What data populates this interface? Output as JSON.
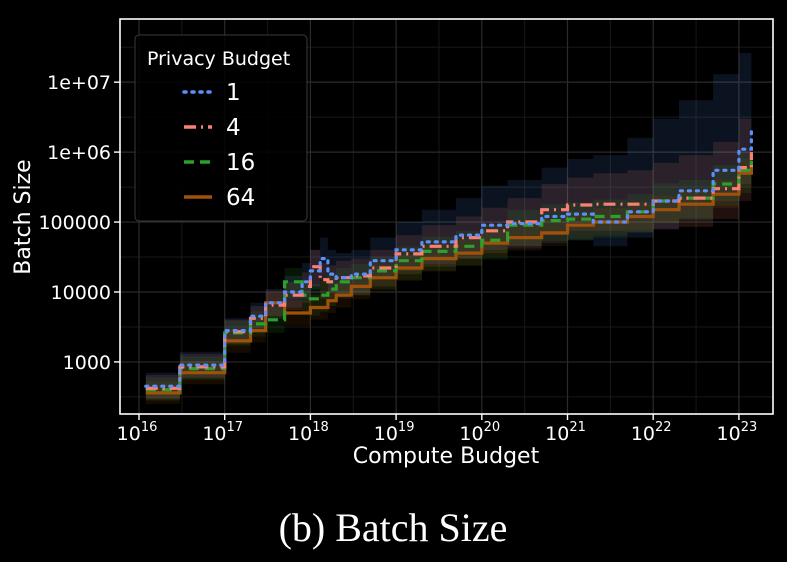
{
  "caption": "(b) Batch Size",
  "chart_data": {
    "type": "line",
    "title": "",
    "xlabel": "Compute Budget",
    "ylabel": "Batch Size",
    "xscale": "log",
    "yscale": "log",
    "xlim": [
      6000000000000000.0,
      2.5e+23
    ],
    "ylim": [
      180,
      80000000
    ],
    "grid": true,
    "x_ticks": [
      {
        "value": 1e+16,
        "base": "10",
        "exp": "16"
      },
      {
        "value": 1e+17,
        "base": "10",
        "exp": "17"
      },
      {
        "value": 1e+18,
        "base": "10",
        "exp": "18"
      },
      {
        "value": 1e+19,
        "base": "10",
        "exp": "19"
      },
      {
        "value": 1e+20,
        "base": "10",
        "exp": "20"
      },
      {
        "value": 1e+21,
        "base": "10",
        "exp": "21"
      },
      {
        "value": 1e+22,
        "base": "10",
        "exp": "22"
      },
      {
        "value": 1e+23,
        "base": "10",
        "exp": "23"
      }
    ],
    "y_ticks": [
      {
        "value": 1000,
        "label": "1000"
      },
      {
        "value": 10000,
        "label": "10000"
      },
      {
        "value": 100000,
        "label": "100000"
      },
      {
        "value": 1000000,
        "label": "1e+06"
      },
      {
        "value": 10000000,
        "label": "1e+07"
      }
    ],
    "legend": {
      "title": "Privacy Budget",
      "position": "top-left"
    },
    "series": [
      {
        "name": "1",
        "color": "#5b8ff9",
        "dash": "dotted",
        "x": [
          1.2e+16,
          3e+16,
          1e+17,
          2e+17,
          3e+17,
          5e+17,
          8e+17,
          1e+18,
          1.3e+18,
          1.6e+18,
          2e+18,
          3e+18,
          5e+18,
          1e+19,
          2e+19,
          5e+19,
          1e+20,
          2e+20,
          5e+20,
          1e+21,
          2e+21,
          5e+21,
          1e+22,
          2e+22,
          5e+22,
          1e+23,
          1.4e+23
        ],
        "y": [
          450,
          900,
          2800,
          4500,
          7000,
          10000,
          14000,
          20000,
          30000,
          18000,
          16000,
          18000,
          28000,
          40000,
          52000,
          65000,
          90000,
          95000,
          120000,
          130000,
          100000,
          140000,
          200000,
          280000,
          550000,
          1100000,
          2000000
        ],
        "band": [
          [
            300,
            700
          ],
          [
            600,
            1400
          ],
          [
            1900,
            4200
          ],
          [
            3000,
            7000
          ],
          [
            4500,
            11000
          ],
          [
            6000,
            17000
          ],
          [
            8000,
            26000
          ],
          [
            11000,
            40000
          ],
          [
            15000,
            60000
          ],
          [
            10000,
            40000
          ],
          [
            9000,
            36000
          ],
          [
            10000,
            40000
          ],
          [
            15000,
            60000
          ],
          [
            20000,
            100000
          ],
          [
            25000,
            150000
          ],
          [
            30000,
            220000
          ],
          [
            40000,
            330000
          ],
          [
            42000,
            400000
          ],
          [
            50000,
            600000
          ],
          [
            55000,
            800000
          ],
          [
            45000,
            900000
          ],
          [
            60000,
            1600000
          ],
          [
            80000,
            3000000
          ],
          [
            110000,
            5500000
          ],
          [
            200000,
            13000000
          ],
          [
            350000,
            26000000
          ],
          [
            600000,
            34000000
          ]
        ]
      },
      {
        "name": "4",
        "color": "#fa8072",
        "dash": "dashdot",
        "x": [
          1.2e+16,
          3e+16,
          1e+17,
          2e+17,
          3e+17,
          5e+17,
          8e+17,
          1e+18,
          1.3e+18,
          1.6e+18,
          2e+18,
          3e+18,
          5e+18,
          1e+19,
          2e+19,
          5e+19,
          1e+20,
          2e+20,
          5e+20,
          1e+21,
          2e+21,
          5e+21,
          1e+22,
          2e+22,
          5e+22,
          1e+23,
          1.4e+23
        ],
        "y": [
          420,
          850,
          2700,
          4200,
          6500,
          9000,
          12000,
          23000,
          15000,
          14000,
          16000,
          17000,
          22000,
          35000,
          45000,
          60000,
          75000,
          100000,
          150000,
          175000,
          180000,
          180000,
          200000,
          220000,
          300000,
          600000,
          1000000
        ],
        "band": [
          [
            290,
            650
          ],
          [
            580,
            1300
          ],
          [
            1800,
            4000
          ],
          [
            2800,
            6300
          ],
          [
            4200,
            9800
          ],
          [
            5500,
            14000
          ],
          [
            7000,
            19000
          ],
          [
            12000,
            40000
          ],
          [
            8000,
            26000
          ],
          [
            7500,
            24000
          ],
          [
            8500,
            28000
          ],
          [
            9000,
            30000
          ],
          [
            12000,
            40000
          ],
          [
            18000,
            65000
          ],
          [
            23000,
            90000
          ],
          [
            30000,
            120000
          ],
          [
            36000,
            160000
          ],
          [
            45000,
            220000
          ],
          [
            65000,
            350000
          ],
          [
            75000,
            430000
          ],
          [
            75000,
            500000
          ],
          [
            72000,
            550000
          ],
          [
            78000,
            700000
          ],
          [
            85000,
            900000
          ],
          [
            110000,
            1400000
          ],
          [
            200000,
            3000000
          ],
          [
            320000,
            4200000
          ]
        ]
      },
      {
        "name": "16",
        "color": "#2ca02c",
        "dash": "dashed",
        "x": [
          1.2e+16,
          3e+16,
          1e+17,
          2e+17,
          3e+17,
          5e+17,
          8e+17,
          1e+18,
          1.3e+18,
          1.6e+18,
          2e+18,
          3e+18,
          5e+18,
          1e+19,
          2e+19,
          5e+19,
          1e+20,
          2e+20,
          5e+20,
          1e+21,
          2e+21,
          5e+21,
          1e+22,
          2e+22,
          5e+22,
          1e+23,
          1.4e+23
        ],
        "y": [
          400,
          800,
          2600,
          3500,
          4000,
          14000,
          9000,
          8000,
          9000,
          11000,
          14000,
          16000,
          20000,
          28000,
          38000,
          45000,
          55000,
          90000,
          105000,
          110000,
          120000,
          140000,
          200000,
          220000,
          350000,
          550000,
          750000
        ],
        "band": [
          [
            280,
            600
          ],
          [
            550,
            1200
          ],
          [
            1700,
            3900
          ],
          [
            2300,
            5300
          ],
          [
            2600,
            6100
          ],
          [
            8000,
            22000
          ],
          [
            5200,
            14500
          ],
          [
            4600,
            13000
          ],
          [
            5200,
            14500
          ],
          [
            6300,
            17500
          ],
          [
            8000,
            22000
          ],
          [
            9000,
            25000
          ],
          [
            11000,
            32000
          ],
          [
            15000,
            45000
          ],
          [
            20000,
            62000
          ],
          [
            24000,
            75000
          ],
          [
            29000,
            92000
          ],
          [
            46000,
            150000
          ],
          [
            53000,
            180000
          ],
          [
            55000,
            190000
          ],
          [
            60000,
            210000
          ],
          [
            70000,
            250000
          ],
          [
            98000,
            360000
          ],
          [
            105000,
            400000
          ],
          [
            170000,
            650000
          ],
          [
            260000,
            1000000
          ],
          [
            350000,
            1400000
          ]
        ]
      },
      {
        "name": "64",
        "color": "#a0520a",
        "dash": "solid",
        "x": [
          1.2e+16,
          3e+16,
          1e+17,
          2e+17,
          3e+17,
          5e+17,
          8e+17,
          1e+18,
          1.3e+18,
          1.6e+18,
          2e+18,
          3e+18,
          5e+18,
          1e+19,
          2e+19,
          5e+19,
          1e+20,
          2e+20,
          5e+20,
          1e+21,
          2e+21,
          5e+21,
          1e+22,
          2e+22,
          5e+22,
          1e+23,
          1.4e+23
        ],
        "y": [
          360,
          700,
          2000,
          2800,
          7000,
          5000,
          5000,
          6000,
          6000,
          7500,
          9000,
          12000,
          16000,
          22000,
          30000,
          36000,
          50000,
          60000,
          70000,
          90000,
          100000,
          120000,
          150000,
          180000,
          250000,
          500000,
          650000
        ],
        "band": [
          [
            250,
            520
          ],
          [
            480,
            1020
          ],
          [
            1350,
            3000
          ],
          [
            1900,
            4200
          ],
          [
            4600,
            10600
          ],
          [
            3300,
            7600
          ],
          [
            3300,
            7600
          ],
          [
            4000,
            9100
          ],
          [
            4000,
            9100
          ],
          [
            5000,
            11500
          ],
          [
            6000,
            13800
          ],
          [
            7900,
            18400
          ],
          [
            10500,
            24600
          ],
          [
            14400,
            34000
          ],
          [
            19600,
            46500
          ],
          [
            23500,
            56000
          ],
          [
            32500,
            78000
          ],
          [
            39000,
            94000
          ],
          [
            45500,
            110000
          ],
          [
            58000,
            142000
          ],
          [
            64500,
            158000
          ],
          [
            77000,
            190000
          ],
          [
            96000,
            238000
          ],
          [
            115000,
            287000
          ],
          [
            159000,
            400000
          ],
          [
            316000,
            805000
          ],
          [
            410000,
            1050000
          ]
        ]
      }
    ]
  }
}
